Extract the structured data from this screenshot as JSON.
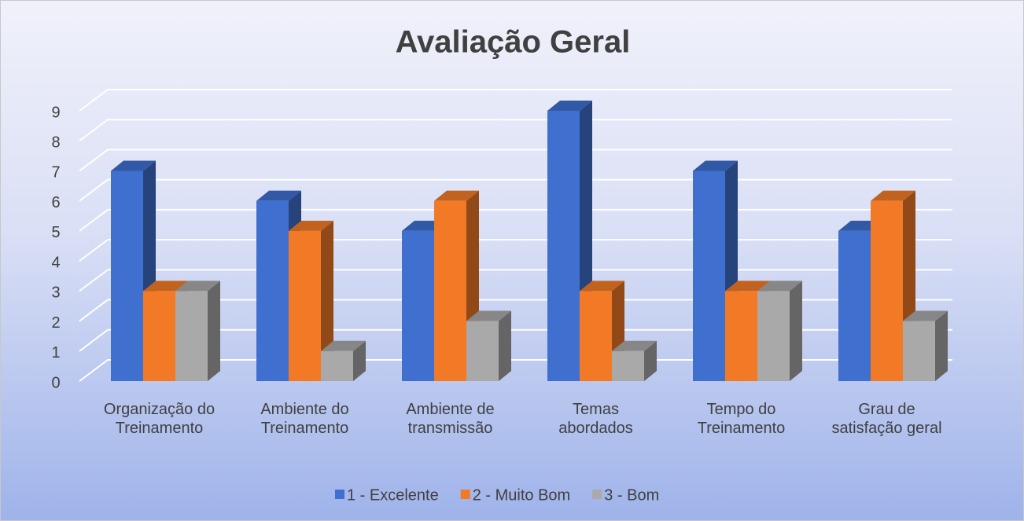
{
  "chart_data": {
    "type": "bar3d",
    "title": "Avaliação Geral",
    "categories": [
      "Organização do Treinamento",
      "Ambiente do Treinamento",
      "Ambiente de transmissão",
      "Temas abordados",
      "Tempo do Treinamento",
      "Grau de satisfação geral"
    ],
    "series": [
      {
        "name": "1 - Excelente",
        "color": "#3f6fcf",
        "values": [
          7,
          6,
          5,
          9,
          7,
          5
        ]
      },
      {
        "name": "2 - Muito Bom",
        "color": "#f27a27",
        "values": [
          3,
          5,
          6,
          3,
          3,
          6
        ]
      },
      {
        "name": "3 - Bom",
        "color": "#a9a9a9",
        "values": [
          3,
          1,
          2,
          1,
          3,
          2
        ]
      }
    ],
    "ylim": [
      0,
      9
    ],
    "yticks": [
      0,
      1,
      2,
      3,
      4,
      5,
      6,
      7,
      8,
      9
    ],
    "grid": true,
    "legend": "bottom"
  }
}
